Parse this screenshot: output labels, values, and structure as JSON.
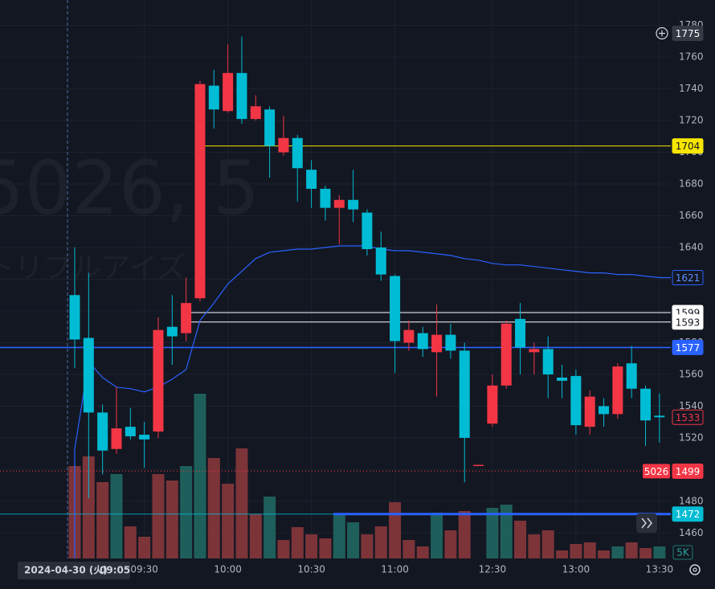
{
  "chart_data": {
    "type": "candlestick",
    "watermark": [
      "5026, 5",
      "トリプルアイズ"
    ],
    "categories": [
      null,
      null,
      null,
      null,
      null,
      "09:30",
      null,
      null,
      null,
      null,
      null,
      "10:00",
      null,
      null,
      null,
      null,
      null,
      "10:30",
      null,
      null,
      null,
      null,
      null,
      "11:00",
      null,
      null,
      null,
      null,
      null,
      null,
      "12:30",
      null,
      null,
      null,
      null,
      null,
      "13:00",
      null,
      null,
      null,
      null,
      null,
      "13:30"
    ],
    "open": [
      1610,
      1583,
      1536,
      1513,
      1527,
      1522,
      1524,
      1590,
      1586,
      1608,
      1742,
      1726,
      1750,
      1721,
      1727,
      1700,
      1709,
      1689,
      1677,
      1665,
      1670,
      1662,
      1640,
      1622,
      1580,
      1586,
      1574,
      1585,
      1575,
      1503,
      1529,
      1553,
      1595,
      1574,
      1576,
      1558,
      1559,
      1527,
      1540,
      1535,
      1567,
      1551,
      1534
    ],
    "high": [
      1640,
      1624,
      1541,
      1552,
      1539,
      1530,
      1596,
      1610,
      1621,
      1745,
      1752,
      1768,
      1773,
      1736,
      1729,
      1723,
      1711,
      1695,
      1679,
      1673,
      1689,
      1664,
      1650,
      1623,
      1594,
      1590,
      1604,
      1592,
      1580,
      1503,
      1560,
      1594,
      1605,
      1580,
      1584,
      1566,
      1563,
      1550,
      1545,
      1567,
      1578,
      1553,
      1548
    ],
    "low": [
      1564,
      1482,
      1497,
      1510,
      1519,
      1501,
      1520,
      1566,
      1581,
      1606,
      1715,
      1725,
      1718,
      1720,
      1684,
      1698,
      1669,
      1665,
      1657,
      1642,
      1656,
      1635,
      1619,
      1561,
      1575,
      1571,
      1546,
      1570,
      1492,
      1503,
      1527,
      1551,
      1560,
      1560,
      1545,
      1545,
      1522,
      1522,
      1527,
      1532,
      1545,
      1515,
      1517
    ],
    "close": [
      1582,
      1536,
      1512,
      1526,
      1521,
      1519,
      1588,
      1584,
      1605,
      1743,
      1727,
      1750,
      1721,
      1729,
      1704,
      1709,
      1690,
      1677,
      1665,
      1670,
      1664,
      1639,
      1623,
      1581,
      1588,
      1576,
      1585,
      1575,
      1520,
      1503,
      1553,
      1592,
      1577,
      1576,
      1560,
      1556,
      1528,
      1546,
      1535,
      1565,
      1551,
      1531,
      1533
    ],
    "up_color": "#f23645",
    "down_color": "#00bcd4",
    "volume": [
      11500,
      12700,
      9500,
      10500,
      4000,
      2700,
      10500,
      9700,
      11500,
      20500,
      12500,
      9300,
      13700,
      5500,
      7700,
      2300,
      3900,
      3000,
      2500,
      5500,
      4500,
      3000,
      4000,
      7000,
      2300,
      1500,
      5700,
      3500,
      5900,
      null,
      6300,
      6700,
      4700,
      3000,
      3500,
      1000,
      1800,
      2000,
      1000,
      1500,
      2000,
      1300,
      1500
    ],
    "volume_colors": [
      "#7c3439",
      "#7c3439",
      "#7c3439",
      "#1f5f5b",
      "#7c3439",
      "#7c3439",
      "#7c3439",
      "#7c3439",
      "#1f5f5b",
      "#1f5f5b",
      "#7c3439",
      "#7c3439",
      "#7c3439",
      "#7c3439",
      "#1f5f5b",
      "#7c3439",
      "#7c3439",
      "#7c3439",
      "#7c3439",
      "#1f5f5b",
      "#1f5f5b",
      "#7c3439",
      "#7c3439",
      "#7c3439",
      "#7c3439",
      "#7c3439",
      "#1f5f5b",
      "#7c3439",
      "#7c3439",
      null,
      "#1f5f5b",
      "#1f5f5b",
      "#7c3439",
      "#7c3439",
      "#7c3439",
      "#7c3439",
      "#7c3439",
      "#7c3439",
      "#7c3439",
      "#1f5f5b",
      "#7c3439",
      "#7c3439",
      "#1f5f5b"
    ],
    "volume_ylim": [
      0,
      35000
    ],
    "vwap": {
      "color": "#2962ff",
      "values": [
        1513,
        1568,
        1558,
        1552,
        1551,
        1549,
        1552,
        1557,
        1563,
        1594,
        1605,
        1617,
        1625,
        1633,
        1637,
        1638,
        1639,
        1639,
        1640,
        1641,
        1641,
        1641,
        1639,
        1638,
        1638,
        1637,
        1636,
        1635,
        1633,
        1632,
        1630,
        1629,
        1629,
        1628,
        1627,
        1626,
        1625,
        1624,
        1624,
        1623,
        1623,
        1622,
        1621
      ],
      "last": 1621
    },
    "ylim": [
      1444,
      1796
    ],
    "yticks": [
      1460,
      1480,
      1500,
      1520,
      1540,
      1560,
      1580,
      1600,
      1620,
      1640,
      1660,
      1680,
      1700,
      1720,
      1740,
      1760,
      1780
    ],
    "price_lines": [
      {
        "value": 1704,
        "color": "#f7e600"
      },
      {
        "value": 1599,
        "color": "#ffffff"
      },
      {
        "value": 1593,
        "color": "#ffffff"
      },
      {
        "value": 1577,
        "color": "#2962ff"
      },
      {
        "value": 1472,
        "color": "#00bcd4"
      },
      {
        "value": 1499,
        "color": "#f23645"
      }
    ],
    "last_price": 1533,
    "symbol": "5026",
    "volume_scale_label": "5K",
    "crosshair": {
      "price": 1775,
      "date": "2024-04-30 (火)",
      "time": "09:05"
    }
  }
}
